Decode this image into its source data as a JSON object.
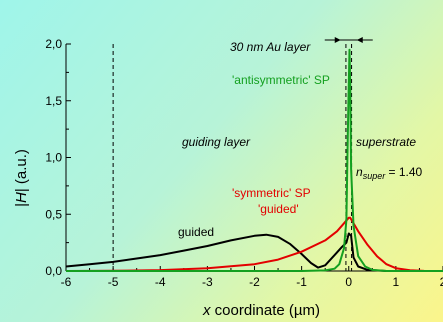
{
  "chart_data": {
    "type": "line",
    "xlabel_var": "x",
    "xlabel_rest": " coordinate (µm)",
    "ylabel_pre": "|",
    "ylabel_var": "H",
    "ylabel_post": "| (a.u.)",
    "xlim": [
      -6,
      2
    ],
    "ylim": [
      0,
      2
    ],
    "x_ticks": [
      "-6",
      "-5",
      "-4",
      "-3",
      "-2",
      "-1",
      "0",
      "1",
      "2"
    ],
    "y_ticks": [
      "0,0",
      "0,5",
      "1,0",
      "1,5",
      "2,0"
    ],
    "series": [
      {
        "name": "guided",
        "color": "#000000",
        "points": [
          [
            -6.0,
            0.04
          ],
          [
            -5.5,
            0.06
          ],
          [
            -5.0,
            0.08
          ],
          [
            -4.5,
            0.11
          ],
          [
            -4.0,
            0.14
          ],
          [
            -3.5,
            0.18
          ],
          [
            -3.0,
            0.22
          ],
          [
            -2.5,
            0.27
          ],
          [
            -2.0,
            0.31
          ],
          [
            -1.75,
            0.32
          ],
          [
            -1.5,
            0.3
          ],
          [
            -1.25,
            0.24
          ],
          [
            -1.0,
            0.15
          ],
          [
            -0.8,
            0.07
          ],
          [
            -0.65,
            0.03
          ],
          [
            -0.5,
            0.05
          ],
          [
            -0.3,
            0.14
          ],
          [
            -0.15,
            0.21
          ],
          [
            -0.05,
            0.25
          ],
          [
            0.0,
            0.33
          ],
          [
            0.05,
            0.31
          ],
          [
            0.1,
            0.12
          ],
          [
            0.2,
            0.04
          ],
          [
            0.4,
            0.01
          ],
          [
            0.8,
            0.0
          ],
          [
            2.0,
            0.0
          ]
        ]
      },
      {
        "name": "'symmetric' SP 'guided'",
        "color": "#e30000",
        "points": [
          [
            -6.0,
            0.0
          ],
          [
            -5.0,
            0.002
          ],
          [
            -4.0,
            0.008
          ],
          [
            -3.0,
            0.025
          ],
          [
            -2.0,
            0.06
          ],
          [
            -1.5,
            0.1
          ],
          [
            -1.0,
            0.17
          ],
          [
            -0.5,
            0.27
          ],
          [
            -0.25,
            0.35
          ],
          [
            -0.1,
            0.42
          ],
          [
            0.0,
            0.47
          ],
          [
            0.03,
            0.47
          ],
          [
            0.1,
            0.42
          ],
          [
            0.2,
            0.35
          ],
          [
            0.4,
            0.23
          ],
          [
            0.6,
            0.13
          ],
          [
            0.8,
            0.06
          ],
          [
            1.0,
            0.025
          ],
          [
            1.3,
            0.006
          ],
          [
            1.6,
            0.001
          ],
          [
            2.0,
            0.0
          ]
        ]
      },
      {
        "name": "'antisymmetric' SP",
        "color": "#14a020",
        "points": [
          [
            -6.0,
            0.0
          ],
          [
            -1.0,
            0.0
          ],
          [
            -0.5,
            0.005
          ],
          [
            -0.3,
            0.02
          ],
          [
            -0.2,
            0.06
          ],
          [
            -0.1,
            0.2
          ],
          [
            -0.05,
            0.45
          ],
          [
            -0.02,
            1.2
          ],
          [
            0.0,
            1.65
          ],
          [
            0.015,
            1.95
          ],
          [
            0.03,
            1.65
          ],
          [
            0.05,
            0.9
          ],
          [
            0.1,
            0.4
          ],
          [
            0.2,
            0.13
          ],
          [
            0.35,
            0.04
          ],
          [
            0.5,
            0.01
          ],
          [
            0.8,
            0.0
          ],
          [
            2.0,
            0.0
          ]
        ]
      }
    ],
    "dashed_verticals_x": [
      -5,
      -0.06,
      0.06
    ],
    "annotations": {
      "layer": "30 nm Au layer",
      "antisym": "'antisymmetric' SP",
      "guiding": "guiding layer",
      "superstrate": "superstrate",
      "nsuper_sym": "n",
      "nsuper_sub": "super",
      "nsuper_val": " = 1.40",
      "sym1": "'symmetric' SP",
      "sym2": "'guided'",
      "guided": "guided"
    }
  }
}
